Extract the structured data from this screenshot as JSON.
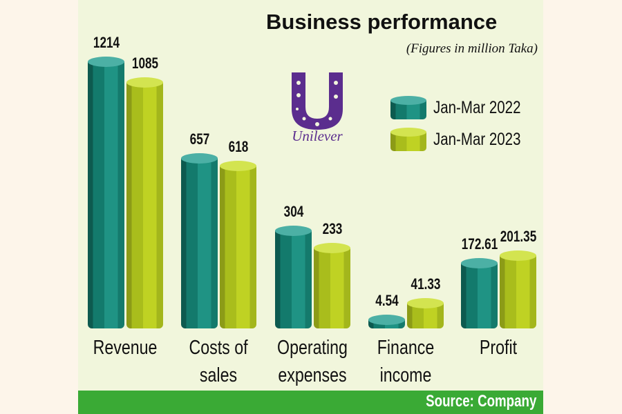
{
  "chart_data": {
    "type": "bar",
    "title": "Business performance",
    "subtitle": "(Figures in million Taka)",
    "categories": [
      "Revenue",
      "Costs of\nsales",
      "Operating\nexpenses",
      "Finance\nincome",
      "Profit"
    ],
    "series": [
      {
        "name": "Jan-Mar 2022",
        "values": [
          1214,
          657,
          304,
          4.54,
          172.61
        ],
        "labels": [
          "1214",
          "657",
          "304",
          "4.54",
          "172.61"
        ],
        "color": "#137a6c"
      },
      {
        "name": "Jan-Mar 2023",
        "values": [
          1085,
          618,
          233,
          41.33,
          201.35
        ],
        "labels": [
          "1085",
          "618",
          "233",
          "41.33",
          "201.35"
        ],
        "color": "#bfd223"
      }
    ],
    "legend": "top-right",
    "grid": false,
    "style": "3d-cylinder"
  },
  "logo": {
    "text": "Unilever",
    "color": "#5b2d8e"
  },
  "source": "Source: Company",
  "colors": {
    "background": "#f1f6dc",
    "footer": "#3aaa35"
  }
}
